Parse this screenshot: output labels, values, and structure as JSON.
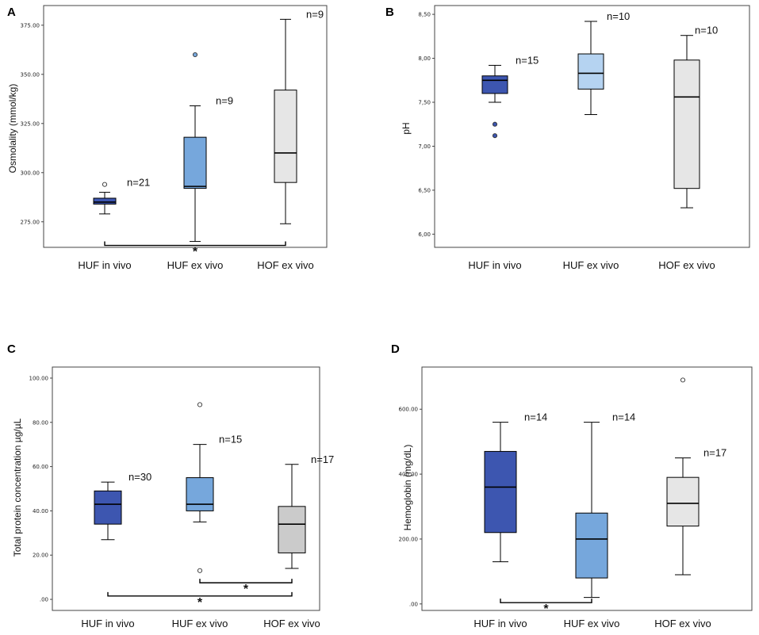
{
  "colors": {
    "huf_in_vivo": "#3d56b0",
    "huf_ex_vivo": "#76a7dc",
    "hof_ex_vivo_light": "#e6e6e6",
    "hof_ex_vivo_gray": "#cbcbcb",
    "huf_ex_vivo_B": "#b5d3f1"
  },
  "chart_data": [
    {
      "panel": "A",
      "type": "box",
      "ylabel": "Osmolality (mmol/kg)",
      "ylim": [
        262,
        385
      ],
      "yticks": [
        275,
        300,
        325,
        350,
        375
      ],
      "ytick_labels": [
        "275.00",
        "300.00",
        "325.00",
        "350.00",
        "375.00"
      ],
      "categories": [
        "HUF in vivo",
        "HUF ex vivo",
        "HOF ex vivo"
      ],
      "boxes": [
        {
          "min": 279,
          "q1": 284,
          "median": 285,
          "q3": 287,
          "max": 290,
          "outliers": [
            294
          ],
          "n_label": "n=21",
          "color_key": "huf_in_vivo",
          "outlier_fill": "white"
        },
        {
          "min": 265,
          "q1": 292,
          "median": 293,
          "q3": 318,
          "max": 334,
          "outliers": [
            360
          ],
          "n_label": "n=9",
          "color_key": "huf_ex_vivo",
          "outlier_fill": "#76a7dc"
        },
        {
          "min": 274,
          "q1": 295,
          "median": 310,
          "q3": 342,
          "max": 378,
          "outliers": [],
          "n_label": "n=9",
          "color_key": "hof_ex_vivo_light",
          "outlier_fill": "white"
        }
      ],
      "significance": [
        {
          "from": 0,
          "to": 2,
          "y": 263,
          "label": "*"
        }
      ]
    },
    {
      "panel": "B",
      "type": "box",
      "ylabel": "pH",
      "ylim": [
        5.85,
        8.6
      ],
      "yticks": [
        6.0,
        6.5,
        7.0,
        7.5,
        8.0,
        8.5
      ],
      "ytick_labels": [
        "6,00",
        "6,50",
        "7,00",
        "7,50",
        "8,00",
        "8,50"
      ],
      "categories": [
        "HUF in vivo",
        "HUF ex vivo",
        "HOF ex vivo"
      ],
      "boxes": [
        {
          "min": 7.5,
          "q1": 7.6,
          "median": 7.75,
          "q3": 7.8,
          "max": 7.92,
          "outliers": [
            7.25,
            7.12
          ],
          "n_label": "n=15",
          "color_key": "huf_in_vivo",
          "outlier_fill": "#3d56b0"
        },
        {
          "min": 7.36,
          "q1": 7.65,
          "median": 7.83,
          "q3": 8.05,
          "max": 8.42,
          "outliers": [],
          "n_label": "n=10",
          "color_key": "huf_ex_vivo_B",
          "outlier_fill": "white"
        },
        {
          "min": 6.3,
          "q1": 6.52,
          "median": 7.56,
          "q3": 7.98,
          "max": 8.26,
          "outliers": [],
          "n_label": "n=10",
          "color_key": "hof_ex_vivo_light",
          "outlier_fill": "white"
        }
      ],
      "significance": []
    },
    {
      "panel": "C",
      "type": "box",
      "ylabel": "Total protein concentration µg/µL",
      "ylim": [
        -5,
        105
      ],
      "yticks": [
        0,
        20,
        40,
        60,
        80,
        100
      ],
      "ytick_labels": [
        ".00",
        "20.00",
        "40.00",
        "60.00",
        "80.00",
        "100.00"
      ],
      "categories": [
        "HUF in vivo",
        "HUF ex vivo",
        "HOF ex vivo"
      ],
      "boxes": [
        {
          "min": 27,
          "q1": 34,
          "median": 43,
          "q3": 49,
          "max": 53,
          "outliers": [],
          "n_label": "n=30",
          "color_key": "huf_in_vivo",
          "outlier_fill": "white"
        },
        {
          "min": 35,
          "q1": 40,
          "median": 43,
          "q3": 55,
          "max": 70,
          "outliers": [
            88,
            13
          ],
          "n_label": "n=15",
          "color_key": "huf_ex_vivo",
          "outlier_fill": "white"
        },
        {
          "min": 14,
          "q1": 21,
          "median": 34,
          "q3": 42,
          "max": 61,
          "outliers": [],
          "n_label": "n=17",
          "color_key": "hof_ex_vivo_gray",
          "outlier_fill": "white"
        }
      ],
      "significance": [
        {
          "from": 1,
          "to": 2,
          "y": 7.5,
          "label": "*"
        },
        {
          "from": 0,
          "to": 2,
          "y": 1.5,
          "label": "*"
        }
      ]
    },
    {
      "panel": "D",
      "type": "box",
      "ylabel": "Hemoglobin (mg/dL)",
      "ylim": [
        -20,
        730
      ],
      "yticks": [
        0,
        200,
        400,
        600
      ],
      "ytick_labels": [
        ".00",
        "200.00",
        "400.00",
        "600.00"
      ],
      "categories": [
        "HUF in vivo",
        "HUF ex vivo",
        "HOF ex vivo"
      ],
      "boxes": [
        {
          "min": 130,
          "q1": 220,
          "median": 360,
          "q3": 470,
          "max": 560,
          "outliers": [],
          "n_label": "n=14",
          "color_key": "huf_in_vivo",
          "outlier_fill": "white"
        },
        {
          "min": 20,
          "q1": 80,
          "median": 200,
          "q3": 280,
          "max": 560,
          "outliers": [],
          "n_label": "n=14",
          "color_key": "huf_ex_vivo",
          "outlier_fill": "white"
        },
        {
          "min": 90,
          "q1": 240,
          "median": 310,
          "q3": 390,
          "max": 450,
          "outliers": [
            690
          ],
          "n_label": "n=17",
          "color_key": "hof_ex_vivo_light",
          "outlier_fill": "white"
        }
      ],
      "significance": [
        {
          "from": 0,
          "to": 1,
          "y": 4,
          "label": "*"
        }
      ]
    }
  ]
}
